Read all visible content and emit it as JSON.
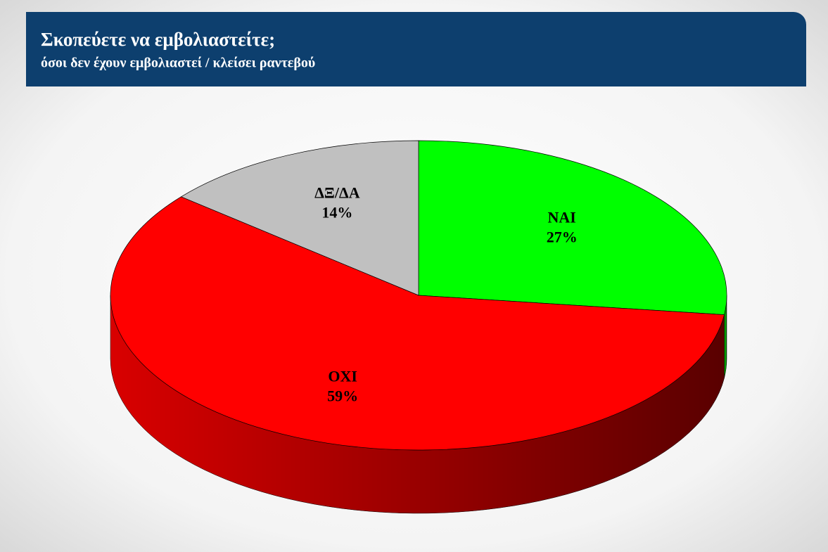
{
  "chart_data": {
    "type": "pie3d",
    "title": "Σκοπεύετε να εμβολιαστείτε;",
    "subtitle": "όσοι δεν έχουν εμβολιαστεί / κλείσει ραντεβού",
    "categories": [
      "NAI",
      "OXI",
      "ΔΞ/ΔΑ"
    ],
    "values": [
      27,
      59,
      14
    ],
    "value_labels": [
      "27%",
      "59%",
      "14%"
    ],
    "colors": [
      "#00ff00",
      "#ff0000",
      "#c0c0c0"
    ]
  }
}
